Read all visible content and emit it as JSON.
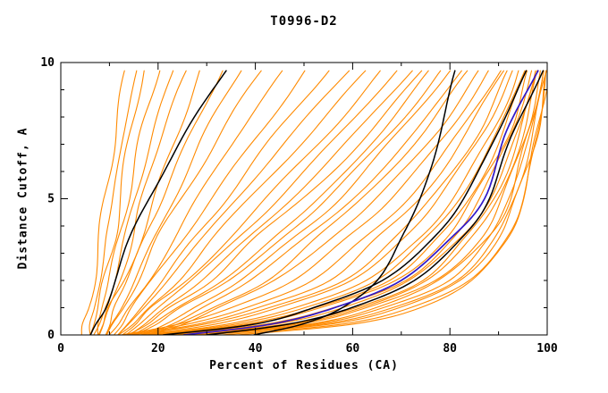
{
  "chart_data": {
    "type": "line",
    "title": "T0996-D2",
    "xlabel": "Percent of Residues (CA)",
    "ylabel": "Distance Cutoff, A",
    "xlim": [
      0,
      100
    ],
    "ylim": [
      0,
      10
    ],
    "xticks": [
      0,
      20,
      40,
      60,
      80,
      100
    ],
    "x_minor_step": 10,
    "yticks": [
      0,
      5,
      10
    ],
    "y_minor_step": 1,
    "grid": false,
    "legend": "none",
    "colors": {
      "orange": "#ff8a00",
      "black": "#000000",
      "blue": "#3018c8"
    },
    "y_anchors": [
      0,
      0.4,
      1,
      2,
      3.5,
      5,
      7.5,
      9.7
    ],
    "series": [
      {
        "group": "orange",
        "x": [
          5,
          5,
          6,
          7,
          8,
          9,
          11,
          13
        ]
      },
      {
        "group": "orange",
        "x": [
          6,
          6,
          7,
          8,
          9,
          11,
          13,
          16
        ]
      },
      {
        "group": "orange",
        "x": [
          6,
          7,
          8,
          9,
          11,
          12,
          14,
          17
        ]
      },
      {
        "group": "orange",
        "x": [
          7,
          7,
          8,
          10,
          12,
          14,
          17,
          20
        ]
      },
      {
        "group": "orange",
        "x": [
          7,
          8,
          9,
          11,
          13,
          15,
          19,
          23
        ]
      },
      {
        "group": "orange",
        "x": [
          8,
          9,
          10,
          12,
          15,
          17,
          21,
          26
        ]
      },
      {
        "group": "orange",
        "x": [
          8,
          9,
          10,
          13,
          16,
          19,
          24,
          29
        ]
      },
      {
        "group": "orange",
        "x": [
          9,
          10,
          11,
          14,
          17,
          21,
          27,
          33
        ]
      },
      {
        "group": "orange",
        "x": [
          9,
          10,
          12,
          15,
          19,
          23,
          30,
          37
        ]
      },
      {
        "group": "orange",
        "x": [
          10,
          11,
          13,
          16,
          20,
          25,
          33,
          41
        ]
      },
      {
        "group": "orange",
        "x": [
          10,
          12,
          14,
          18,
          23,
          28,
          37,
          46
        ]
      },
      {
        "group": "orange",
        "x": [
          11,
          13,
          15,
          19,
          25,
          31,
          41,
          50
        ]
      },
      {
        "group": "orange",
        "x": [
          11,
          13,
          16,
          21,
          27,
          34,
          45,
          55
        ]
      },
      {
        "group": "orange",
        "x": [
          12,
          14,
          17,
          22,
          29,
          36,
          48,
          59
        ]
      },
      {
        "group": "orange",
        "x": [
          12,
          15,
          18,
          24,
          31,
          39,
          52,
          63
        ]
      },
      {
        "group": "orange",
        "x": [
          13,
          16,
          19,
          26,
          34,
          42,
          55,
          66
        ]
      },
      {
        "group": "orange",
        "x": [
          13,
          16,
          20,
          27,
          36,
          45,
          58,
          69
        ]
      },
      {
        "group": "orange",
        "x": [
          14,
          17,
          21,
          29,
          38,
          47,
          61,
          72
        ]
      },
      {
        "group": "orange",
        "x": [
          14,
          18,
          22,
          31,
          40,
          50,
          64,
          74
        ]
      },
      {
        "group": "orange",
        "x": [
          15,
          19,
          24,
          33,
          43,
          53,
          66,
          76
        ]
      },
      {
        "group": "orange",
        "x": [
          15,
          20,
          25,
          35,
          45,
          55,
          68,
          78
        ]
      },
      {
        "group": "orange",
        "x": [
          16,
          21,
          27,
          37,
          47,
          57,
          70,
          80
        ]
      },
      {
        "group": "orange",
        "x": [
          17,
          23,
          29,
          39,
          50,
          60,
          73,
          82
        ]
      },
      {
        "group": "orange",
        "x": [
          18,
          24,
          31,
          42,
          52,
          62,
          75,
          84
        ]
      },
      {
        "group": "orange",
        "x": [
          19,
          26,
          33,
          44,
          55,
          65,
          77,
          86
        ]
      },
      {
        "group": "orange",
        "x": [
          12,
          24,
          35,
          48,
          58,
          68,
          80,
          88
        ]
      },
      {
        "group": "orange",
        "x": [
          13,
          26,
          38,
          52,
          62,
          71,
          82,
          90
        ]
      },
      {
        "group": "orange",
        "x": [
          14,
          28,
          40,
          55,
          65,
          74,
          84,
          91
        ]
      },
      {
        "group": "orange",
        "x": [
          15,
          30,
          43,
          58,
          68,
          76,
          86,
          92
        ]
      },
      {
        "group": "orange",
        "x": [
          16,
          32,
          45,
          60,
          70,
          78,
          87,
          93
        ]
      },
      {
        "group": "orange",
        "x": [
          17,
          34,
          48,
          63,
          73,
          80,
          89,
          94
        ]
      },
      {
        "group": "orange",
        "x": [
          18,
          36,
          50,
          65,
          75,
          82,
          90,
          95
        ]
      },
      {
        "group": "orange",
        "x": [
          19,
          38,
          52,
          67,
          77,
          84,
          91,
          96
        ]
      },
      {
        "group": "orange",
        "x": [
          20,
          40,
          54,
          69,
          79,
          85,
          92,
          96
        ]
      },
      {
        "group": "orange",
        "x": [
          21,
          42,
          56,
          71,
          80,
          86,
          93,
          97
        ]
      },
      {
        "group": "orange",
        "x": [
          22,
          44,
          58,
          72,
          82,
          88,
          94,
          97
        ]
      },
      {
        "group": "orange",
        "x": [
          23,
          46,
          60,
          74,
          83,
          89,
          95,
          98
        ]
      },
      {
        "group": "orange",
        "x": [
          24,
          48,
          62,
          75,
          84,
          90,
          95,
          98
        ]
      },
      {
        "group": "orange",
        "x": [
          25,
          49,
          63,
          77,
          86,
          91,
          96,
          99
        ]
      },
      {
        "group": "orange",
        "x": [
          26,
          51,
          65,
          78,
          87,
          92,
          96,
          99
        ]
      },
      {
        "group": "orange",
        "x": [
          27,
          52,
          66,
          80,
          88,
          92,
          97,
          99
        ]
      },
      {
        "group": "orange",
        "x": [
          28,
          54,
          68,
          81,
          89,
          93,
          97,
          100
        ]
      },
      {
        "group": "orange",
        "x": [
          30,
          56,
          70,
          82,
          90,
          94,
          98,
          100
        ]
      },
      {
        "group": "orange",
        "x": [
          33,
          58,
          72,
          84,
          91,
          95,
          98,
          100
        ]
      },
      {
        "group": "orange",
        "x": [
          36,
          60,
          74,
          85,
          92,
          95,
          98,
          100
        ]
      },
      {
        "group": "black",
        "x": [
          6,
          7,
          9,
          11,
          14,
          18,
          26,
          34
        ]
      },
      {
        "group": "black",
        "x": [
          40,
          50,
          58,
          65,
          70,
          74,
          78,
          81
        ]
      },
      {
        "group": "black",
        "x": [
          21,
          40,
          52,
          66,
          76,
          83,
          90,
          96
        ]
      },
      {
        "group": "black",
        "x": [
          30,
          47,
          60,
          73,
          82,
          88,
          93,
          99
        ]
      },
      {
        "group": "blue",
        "x": [
          25,
          43,
          56,
          70,
          80,
          87,
          92,
          98
        ]
      }
    ]
  }
}
